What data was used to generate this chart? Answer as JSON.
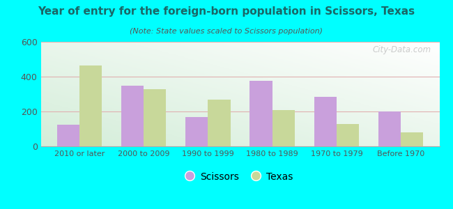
{
  "title": "Year of entry for the foreign-born population in Scissors, Texas",
  "subtitle": "(Note: State values scaled to Scissors population)",
  "categories": [
    "2010 or later",
    "2000 to 2009",
    "1990 to 1999",
    "1980 to 1989",
    "1970 to 1979",
    "Before 1970"
  ],
  "scissors_values": [
    125,
    350,
    168,
    375,
    285,
    200
  ],
  "texas_values": [
    465,
    330,
    268,
    208,
    130,
    82
  ],
  "scissors_color": "#c9a0dc",
  "texas_color": "#c8d89a",
  "background_color": "#00ffff",
  "ylim": [
    0,
    600
  ],
  "yticks": [
    0,
    200,
    400,
    600
  ],
  "bar_width": 0.35,
  "watermark": "City-Data.com",
  "legend_labels": [
    "Scissors",
    "Texas"
  ],
  "title_color": "#1a6666",
  "subtitle_color": "#555555",
  "tick_color": "#555555",
  "grid_color": "#e0b0b0"
}
